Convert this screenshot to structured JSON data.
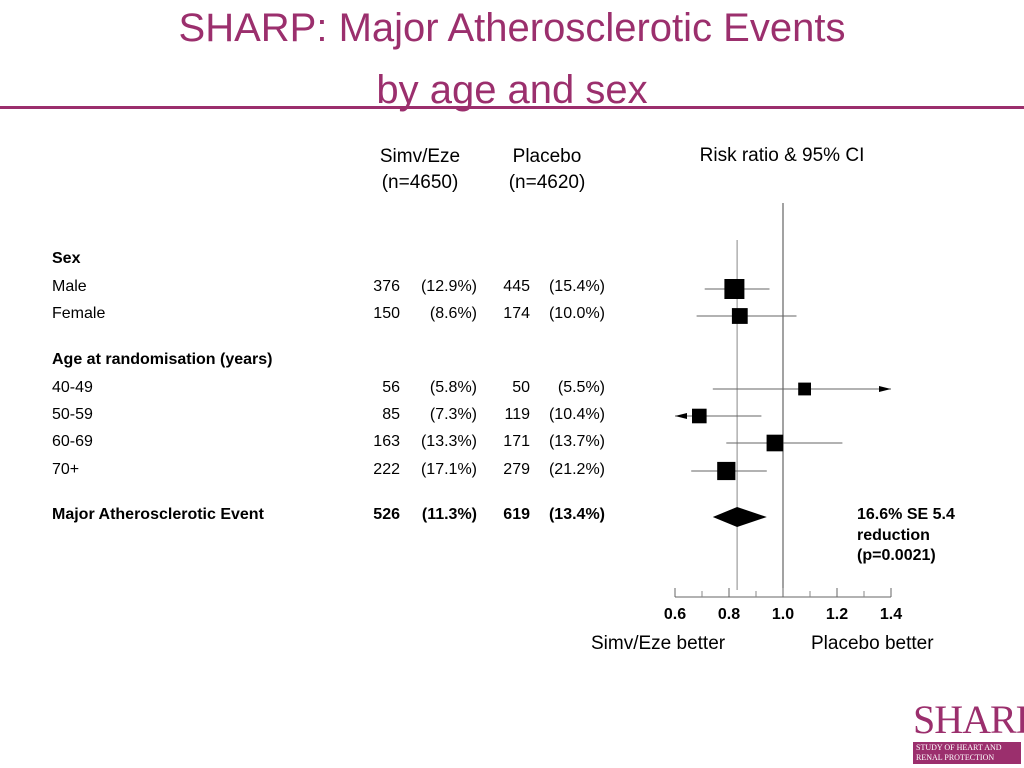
{
  "slide": {
    "title_line1": "SHARP: Major Atherosclerotic Events",
    "title_line2": "by age and sex",
    "title_color": "#9b2f6d"
  },
  "columns": {
    "group1_name": "Simv/Eze",
    "group1_n": "(n=4650)",
    "group2_name": "Placebo",
    "group2_n": "(n=4620)",
    "plot_header": "Risk ratio & 95% CI"
  },
  "rows": [
    {
      "label": "Sex",
      "header": true
    },
    {
      "label": "Male",
      "g1": "376",
      "g1pct": "(12.9%)",
      "g2": "445",
      "g2pct": "(15.4%)"
    },
    {
      "label": "Female",
      "g1": "150",
      "g1pct": "(8.6%)",
      "g2": "174",
      "g2pct": "(10.0%)"
    },
    {
      "label": "Age at randomisation (years)",
      "header": true
    },
    {
      "label": "40-49",
      "g1": "56",
      "g1pct": "(5.8%)",
      "g2": "50",
      "g2pct": "(5.5%)"
    },
    {
      "label": "50-59",
      "g1": "85",
      "g1pct": "(7.3%)",
      "g2": "119",
      "g2pct": "(10.4%)"
    },
    {
      "label": "60-69",
      "g1": "163",
      "g1pct": "(13.3%)",
      "g2": "171",
      "g2pct": "(13.7%)"
    },
    {
      "label": "70+",
      "g1": "222",
      "g1pct": "(17.1%)",
      "g2": "279",
      "g2pct": "(21.2%)"
    },
    {
      "label": "Major Atherosclerotic Event",
      "g1": "526",
      "g1pct": "(11.3%)",
      "g2": "619",
      "g2pct": "(13.4%)",
      "total": true
    }
  ],
  "reduction": {
    "line1": "16.6% SE 5.4",
    "line2": "reduction",
    "line3": "(p=0.0021)"
  },
  "axis_labels": {
    "left": "Simv/Eze better",
    "right": "Placebo better"
  },
  "logo": {
    "word": "SHARP",
    "tag_line1": "STUDY OF HEART AND",
    "tag_line2": "RENAL PROTECTION"
  },
  "chart_data": {
    "type": "forest",
    "xlim": [
      0.6,
      1.4
    ],
    "ticks": [
      0.6,
      0.8,
      1.0,
      1.2,
      1.4
    ],
    "tick_labels": [
      "0.6",
      "0.8",
      "1.0",
      "1.2",
      "1.4"
    ],
    "reference_line": 1.0,
    "overall_line": 0.83,
    "estimates": [
      {
        "label": "Male",
        "rr": 0.82,
        "lo": 0.71,
        "hi": 0.95,
        "weight": 1.0
      },
      {
        "label": "Female",
        "rr": 0.84,
        "lo": 0.68,
        "hi": 1.05,
        "weight": 0.65
      },
      {
        "label": "40-49",
        "rr": 1.08,
        "lo": 0.74,
        "hi": 1.58,
        "weight": 0.4
      },
      {
        "label": "50-59",
        "rr": 0.69,
        "lo": 0.52,
        "hi": 0.92,
        "weight": 0.55
      },
      {
        "label": "60-69",
        "rr": 0.97,
        "lo": 0.79,
        "hi": 1.22,
        "weight": 0.72
      },
      {
        "label": "70+",
        "rr": 0.79,
        "lo": 0.66,
        "hi": 0.94,
        "weight": 0.85
      }
    ],
    "overall": {
      "label": "Major Atherosclerotic Event",
      "rr": 0.83,
      "lo": 0.74,
      "hi": 0.94
    }
  }
}
